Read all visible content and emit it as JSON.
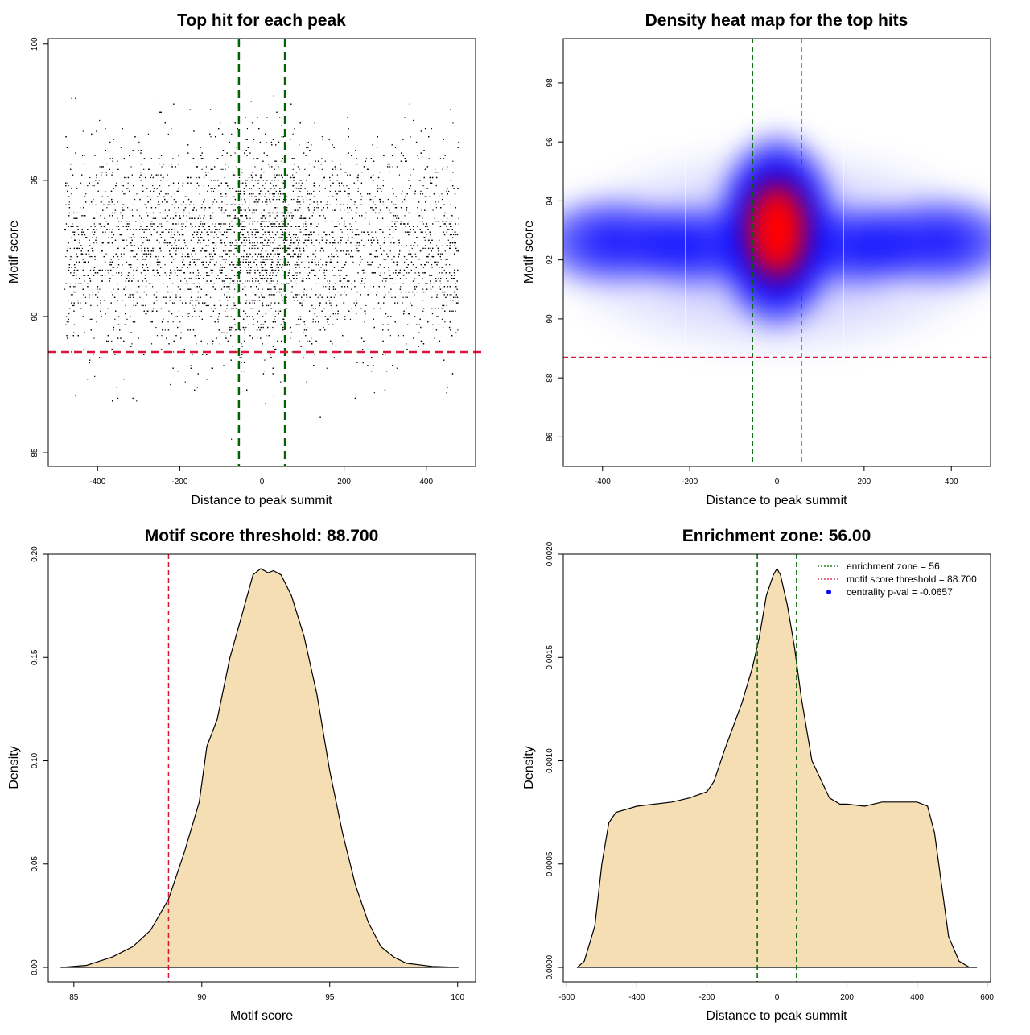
{
  "chart_data": [
    {
      "type": "scatter",
      "title": "Top hit for each peak",
      "xlabel": "Distance to peak summit",
      "ylabel": "Motif score",
      "xlim": [
        -520,
        520
      ],
      "ylim": [
        84.5,
        100.2
      ],
      "xticks": [
        -400,
        -200,
        0,
        200,
        400
      ],
      "yticks": [
        85,
        90,
        95,
        100
      ],
      "point_x_range": [
        -480,
        480
      ],
      "point_y_range": [
        85,
        99.5
      ],
      "vlines": [
        -56,
        56
      ],
      "hline": 88.7,
      "colors": {
        "points": "#000000",
        "vlines": "#006400",
        "hline": "#DC143C"
      }
    },
    {
      "type": "heatmap",
      "title": "Density heat map for the top hits",
      "xlabel": "Distance to peak summit",
      "ylabel": "Motif score",
      "xlim": [
        -490,
        490
      ],
      "ylim": [
        85,
        99.5
      ],
      "xticks": [
        -400,
        -200,
        0,
        200,
        400
      ],
      "yticks": [
        86,
        88,
        90,
        92,
        94,
        96,
        98
      ],
      "hotspot": {
        "x": 0,
        "y": 93
      },
      "vlines": [
        -56,
        56
      ],
      "hline": 88.7,
      "colors": {
        "low": "#ffffff",
        "mid": "#0000ff",
        "high": "#ff0000",
        "vlines": "#006400",
        "hline": "#DC143C"
      }
    },
    {
      "type": "area",
      "title": "Motif score threshold: 88.700",
      "xlabel": "Motif score",
      "ylabel": "Density",
      "xlim": [
        84,
        100.7
      ],
      "ylim": [
        -0.007,
        0.2
      ],
      "xticks": [
        85,
        90,
        95,
        100
      ],
      "yticks": [
        "0.00",
        "0.05",
        "0.10",
        "0.15",
        "0.20"
      ],
      "x": [
        84.5,
        85.5,
        86.5,
        87.3,
        88.0,
        88.7,
        89.3,
        89.9,
        90.2,
        90.6,
        91.1,
        91.6,
        92.0,
        92.3,
        92.6,
        92.8,
        93.1,
        93.5,
        94.0,
        94.5,
        95.0,
        95.5,
        96.0,
        96.5,
        97.0,
        97.5,
        98.0,
        99.0,
        100.0
      ],
      "y": [
        0.0,
        0.001,
        0.005,
        0.01,
        0.018,
        0.033,
        0.055,
        0.08,
        0.107,
        0.12,
        0.15,
        0.172,
        0.19,
        0.193,
        0.191,
        0.192,
        0.19,
        0.18,
        0.16,
        0.132,
        0.095,
        0.065,
        0.04,
        0.022,
        0.01,
        0.005,
        0.002,
        0.0005,
        0.0
      ],
      "vline": 88.7,
      "colors": {
        "fill": "#F5DEB3",
        "line": "#000000",
        "vline": "#DC143C"
      }
    },
    {
      "type": "area",
      "title": "Enrichment zone: 56.00",
      "xlabel": "Distance to peak summit",
      "ylabel": "Density",
      "xlim": [
        -610,
        610
      ],
      "ylim": [
        -7e-05,
        0.002
      ],
      "xticks": [
        -600,
        -400,
        -200,
        0,
        200,
        400,
        600
      ],
      "yticks": [
        "0.0000",
        "0.0005",
        "0.0010",
        "0.0015",
        "0.0020"
      ],
      "x": [
        -570,
        -550,
        -520,
        -500,
        -480,
        -460,
        -400,
        -300,
        -250,
        -200,
        -180,
        -150,
        -100,
        -70,
        -50,
        -30,
        -10,
        0,
        10,
        30,
        50,
        70,
        100,
        150,
        180,
        200,
        250,
        300,
        400,
        430,
        450,
        470,
        490,
        520,
        550,
        570
      ],
      "y": [
        0.0,
        3e-05,
        0.0002,
        0.0005,
        0.0007,
        0.00075,
        0.00078,
        0.0008,
        0.00082,
        0.00085,
        0.0009,
        0.00105,
        0.00128,
        0.00145,
        0.0016,
        0.0018,
        0.0019,
        0.00193,
        0.0019,
        0.00175,
        0.00155,
        0.0013,
        0.001,
        0.00082,
        0.00079,
        0.00079,
        0.00078,
        0.0008,
        0.0008,
        0.00078,
        0.00065,
        0.0004,
        0.00015,
        3e-05,
        0.0,
        0.0
      ],
      "vlines": [
        -56,
        56
      ],
      "colors": {
        "fill": "#F5DEB3",
        "line": "#000000",
        "vlines": "#006400"
      },
      "legend": [
        {
          "label": "enrichment zone = 56",
          "style": "dotted",
          "color": "#006400"
        },
        {
          "label": "motif score threshold = 88.700",
          "style": "dotted",
          "color": "#DC143C"
        },
        {
          "label": "centrality p-val = -0.0657",
          "style": "point",
          "color": "#0000ff"
        }
      ],
      "legend_position": "top-right"
    }
  ]
}
